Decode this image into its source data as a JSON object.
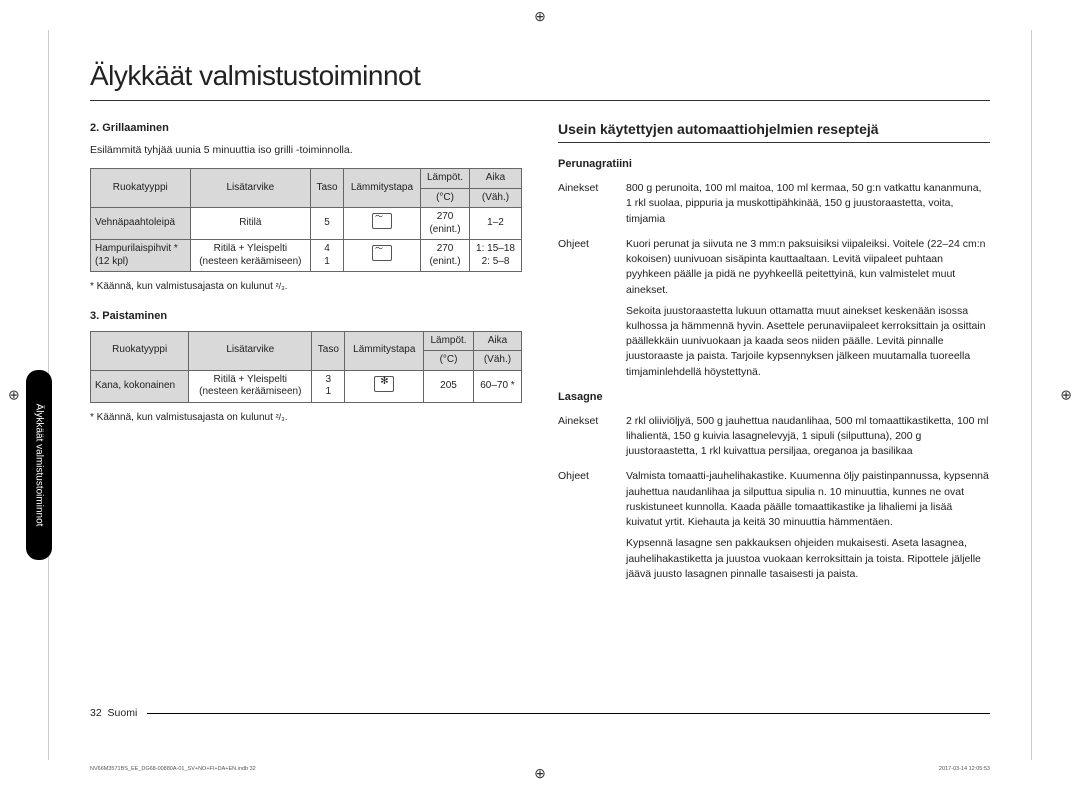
{
  "title": "Älykkäät valmistustoiminnot",
  "sideTab": "Älykkäät valmistustoiminnot",
  "left": {
    "sec2": {
      "head": "2. Grillaaminen",
      "intro": "Esilämmitä tyhjää uunia 5 minuuttia iso grilli -toiminnolla.",
      "cols": {
        "c1": "Ruokatyyppi",
        "c2": "Lisätarvike",
        "c3": "Taso",
        "c4": "Lämmitystapa",
        "c5": "Lämpöt.",
        "c5b": "(°C)",
        "c6": "Aika",
        "c6b": "(Väh.)"
      },
      "r1": {
        "a": "Vehnäpaahtoleipä",
        "b": "Ritilä",
        "c": "5",
        "e": "270",
        "e2": "(enint.)",
        "f": "1–2"
      },
      "r2": {
        "a": "Hampurilaispihvit *",
        "a2": "(12 kpl)",
        "b": "Ritilä + Yleispelti",
        "b2": "(nesteen keräämiseen)",
        "c": "4",
        "c2": "1",
        "e": "270",
        "e2": "(enint.)",
        "f": "1: 15–18",
        "f2": "2: 5–8"
      },
      "note": "* Käännä, kun valmistusajasta on kulunut ",
      "noteFrac": "²/₃."
    },
    "sec3": {
      "head": "3. Paistaminen",
      "cols": {
        "c1": "Ruokatyyppi",
        "c2": "Lisätarvike",
        "c3": "Taso",
        "c4": "Lämmitystapa",
        "c5": "Lämpöt.",
        "c5b": "(°C)",
        "c6": "Aika",
        "c6b": "(Väh.)"
      },
      "r1": {
        "a": "Kana, kokonainen",
        "b": "Ritilä + Yleispelti",
        "b2": "(nesteen keräämiseen)",
        "c": "3",
        "c2": "1",
        "e": "205",
        "f": "60–70 *"
      },
      "note": "* Käännä, kun valmistusajasta on kulunut ",
      "noteFrac": "²/₃."
    }
  },
  "right": {
    "head": "Usein käytettyjen automaattiohjelmien reseptejä",
    "r1": {
      "title": "Perunagratiini",
      "l1": "Ainekset",
      "t1": "800 g perunoita, 100 ml maitoa, 100 ml kermaa, 50 g:n vatkattu kananmuna, 1 rkl suolaa, pippuria ja muskottipähkinää, 150 g juustoraastetta, voita, timjamia",
      "l2": "Ohjeet",
      "t2a": "Kuori perunat ja siivuta ne 3 mm:n paksuisiksi viipaleiksi. Voitele (22–24 cm:n kokoisen) uunivuoan sisäpinta kauttaaltaan. Levitä viipaleet puhtaan pyyhkeen päälle ja pidä ne pyyhkeellä peitettyinä, kun valmistelet muut ainekset.",
      "t2b": "Sekoita juustoraastetta lukuun ottamatta muut ainekset keskenään isossa kulhossa ja hämmennä hyvin. Asettele perunaviipaleet kerroksittain ja osittain päällekkäin uunivuokaan ja kaada seos niiden päälle. Levitä pinnalle juustoraaste ja paista. Tarjoile kypsennyksen jälkeen muutamalla tuoreella timjaminlehdellä höystettynä."
    },
    "r2": {
      "title": "Lasagne",
      "l1": "Ainekset",
      "t1": "2 rkl oliiviöljyä, 500 g jauhettua naudanlihaa, 500 ml tomaattikastiketta, 100 ml lihalientä, 150 g kuivia lasagnelevyjä, 1 sipuli (silputtuna), 200 g juustoraastetta, 1 rkl kuivattua persiljaa, oreganoa ja basilikaa",
      "l2": "Ohjeet",
      "t2a": "Valmista tomaatti-jauhelihakastike. Kuumenna öljy paistinpannussa, kypsennä jauhettua naudanlihaa ja silputtua sipulia n. 10 minuuttia, kunnes ne ovat ruskistuneet kunnolla. Kaada päälle tomaattikastike ja lihaliemi ja lisää kuivatut yrtit. Kiehauta ja keitä 30 minuuttia hämmentäen.",
      "t2b": "Kypsennä lasagne sen pakkauksen ohjeiden mukaisesti. Aseta lasagnea, jauhelihakastiketta ja juustoa vuokaan kerroksittain ja toista. Ripottele jäljelle jäävä juusto lasagnen pinnalle tasaisesti ja paista."
    }
  },
  "footer": {
    "page": "32",
    "lang": "Suomi",
    "metaLeft": "NV66M3571BS_EE_DG68-00880A-01_SV+NO+FI+DA+EN.indb   32",
    "metaRight": "2017-03-14   12:05:53",
    "markIcon": "⊕"
  }
}
